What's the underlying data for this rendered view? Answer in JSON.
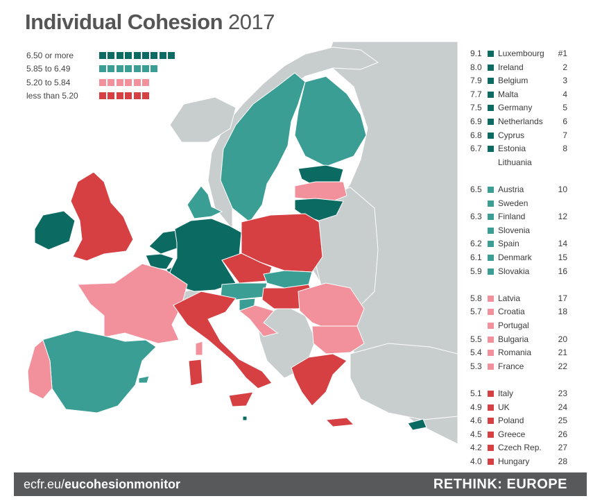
{
  "title": {
    "main": "Individual Cohesion",
    "year": "2017"
  },
  "colors": {
    "c1": "#0b6b63",
    "c2": "#3a9e95",
    "c3": "#f2919b",
    "c4": "#d64043",
    "nonEU": "#c8cdcd",
    "sea": "#ffffff"
  },
  "legend": [
    {
      "label": "6.50 or more",
      "cls": "c1",
      "count": 9
    },
    {
      "label": "5.85 to 6.49",
      "cls": "c2",
      "count": 7
    },
    {
      "label": "5.20 to 5.84",
      "cls": "c3",
      "count": 6
    },
    {
      "label": "less than 5.20",
      "cls": "c4",
      "count": 6
    }
  ],
  "ranking": [
    {
      "score": "9.1",
      "country": "Luxembourg",
      "rank": "#1",
      "cls": "c1"
    },
    {
      "score": "8.0",
      "country": "Ireland",
      "rank": "2",
      "cls": "c1"
    },
    {
      "score": "7.9",
      "country": "Belgium",
      "rank": "3",
      "cls": "c1"
    },
    {
      "score": "7.7",
      "country": "Malta",
      "rank": "4",
      "cls": "c1"
    },
    {
      "score": "7.5",
      "country": "Germany",
      "rank": "5",
      "cls": "c1"
    },
    {
      "score": "6.9",
      "country": "Netherlands",
      "rank": "6",
      "cls": "c1"
    },
    {
      "score": "6.8",
      "country": "Cyprus",
      "rank": "7",
      "cls": "c1"
    },
    {
      "score": "6.7",
      "country": "Estonia",
      "rank": "8",
      "cls": "c1"
    },
    {
      "score": "",
      "country": "Lithuania",
      "rank": "",
      "cls": ""
    },
    {
      "gap": true
    },
    {
      "score": "6.5",
      "country": "Austria",
      "rank": "10",
      "cls": "c2"
    },
    {
      "score": "",
      "country": "Sweden",
      "rank": "",
      "cls": "c2"
    },
    {
      "score": "6.3",
      "country": "Finland",
      "rank": "12",
      "cls": "c2"
    },
    {
      "score": "",
      "country": "Slovenia",
      "rank": "",
      "cls": "c2"
    },
    {
      "score": "6.2",
      "country": "Spain",
      "rank": "14",
      "cls": "c2"
    },
    {
      "score": "6.1",
      "country": "Denmark",
      "rank": "15",
      "cls": "c2"
    },
    {
      "score": "5.9",
      "country": "Slovakia",
      "rank": "16",
      "cls": "c2"
    },
    {
      "gap": true
    },
    {
      "score": "5.8",
      "country": "Latvia",
      "rank": "17",
      "cls": "c3"
    },
    {
      "score": "5.7",
      "country": "Croatia",
      "rank": "18",
      "cls": "c3"
    },
    {
      "score": "",
      "country": "Portugal",
      "rank": "",
      "cls": "c3"
    },
    {
      "score": "5.5",
      "country": "Bulgaria",
      "rank": "20",
      "cls": "c3"
    },
    {
      "score": "5.4",
      "country": "Romania",
      "rank": "21",
      "cls": "c3"
    },
    {
      "score": "5.3",
      "country": "France",
      "rank": "22",
      "cls": "c3"
    },
    {
      "gap": true
    },
    {
      "score": "5.1",
      "country": "Italy",
      "rank": "23",
      "cls": "c4"
    },
    {
      "score": "4.9",
      "country": "UK",
      "rank": "24",
      "cls": "c4"
    },
    {
      "score": "4.6",
      "country": "Poland",
      "rank": "25",
      "cls": "c4"
    },
    {
      "score": "4.5",
      "country": "Greece",
      "rank": "26",
      "cls": "c4"
    },
    {
      "score": "4.2",
      "country": "Czech Rep.",
      "rank": "27",
      "cls": "c4"
    },
    {
      "score": "4.0",
      "country": "Hungary",
      "rank": "28",
      "cls": "c4"
    }
  ],
  "map_regions": [
    {
      "name": "russia-east",
      "cls": "nonEU"
    },
    {
      "name": "norway",
      "cls": "nonEU"
    },
    {
      "name": "iceland",
      "cls": "nonEU"
    },
    {
      "name": "switzerland",
      "cls": "nonEU"
    },
    {
      "name": "balkans",
      "cls": "nonEU"
    },
    {
      "name": "turkey",
      "cls": "nonEU"
    },
    {
      "name": "belarus-ukraine",
      "cls": "nonEU"
    },
    {
      "name": "sweden",
      "cls": "c2"
    },
    {
      "name": "finland",
      "cls": "c2"
    },
    {
      "name": "estonia",
      "cls": "c1"
    },
    {
      "name": "latvia",
      "cls": "c3"
    },
    {
      "name": "lithuania",
      "cls": "c1"
    },
    {
      "name": "denmark",
      "cls": "c2"
    },
    {
      "name": "uk",
      "cls": "c4"
    },
    {
      "name": "ireland",
      "cls": "c1"
    },
    {
      "name": "netherlands",
      "cls": "c1"
    },
    {
      "name": "belgium",
      "cls": "c1"
    },
    {
      "name": "luxembourg",
      "cls": "c1"
    },
    {
      "name": "germany",
      "cls": "c1"
    },
    {
      "name": "poland",
      "cls": "c4"
    },
    {
      "name": "czech",
      "cls": "c4"
    },
    {
      "name": "slovakia",
      "cls": "c2"
    },
    {
      "name": "austria",
      "cls": "c2"
    },
    {
      "name": "slovenia",
      "cls": "c2"
    },
    {
      "name": "hungary",
      "cls": "c4"
    },
    {
      "name": "croatia",
      "cls": "c3"
    },
    {
      "name": "romania",
      "cls": "c3"
    },
    {
      "name": "bulgaria",
      "cls": "c3"
    },
    {
      "name": "greece",
      "cls": "c4"
    },
    {
      "name": "france",
      "cls": "c3"
    },
    {
      "name": "spain",
      "cls": "c2"
    },
    {
      "name": "portugal",
      "cls": "c3"
    },
    {
      "name": "italy",
      "cls": "c4"
    },
    {
      "name": "sardinia",
      "cls": "c4"
    },
    {
      "name": "corsica",
      "cls": "c3"
    },
    {
      "name": "sicily",
      "cls": "c4"
    },
    {
      "name": "malta",
      "cls": "c1"
    },
    {
      "name": "cyprus",
      "cls": "c1"
    },
    {
      "name": "crete",
      "cls": "c4"
    },
    {
      "name": "balearics",
      "cls": "c2"
    }
  ],
  "footer": {
    "site_prefix": "ecfr.eu/",
    "site_bold": "eucohesionmonitor",
    "brand": "RETHINK: EUROPE"
  }
}
